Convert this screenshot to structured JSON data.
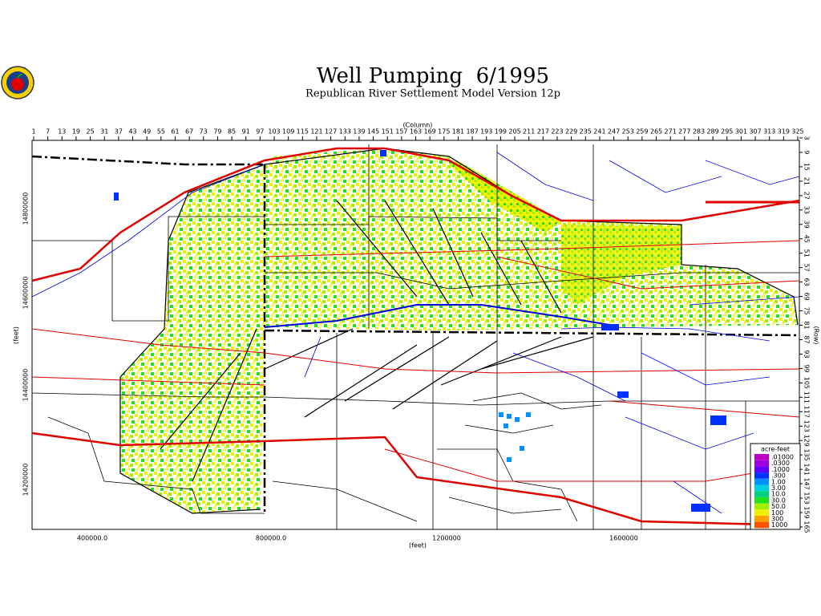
{
  "header": {
    "title": "Well Pumping  6/1995",
    "subtitle": "Republican River Settlement Model Version 12p"
  },
  "map": {
    "column_label": "(Column)",
    "row_label": "(Row)",
    "x_label": "(feet)",
    "y_label": "(feet)",
    "column_ticks": [
      1,
      7,
      13,
      19,
      25,
      31,
      37,
      43,
      49,
      55,
      61,
      67,
      73,
      79,
      85,
      91,
      97,
      103,
      109,
      115,
      121,
      127,
      133,
      139,
      145,
      151,
      157,
      163,
      169,
      175,
      181,
      187,
      193,
      199,
      205,
      211,
      217,
      223,
      229,
      235,
      241,
      247,
      253,
      259,
      265,
      271,
      277,
      283,
      289,
      295,
      301,
      307,
      313,
      319,
      325
    ],
    "row_ticks": [
      3,
      9,
      15,
      21,
      27,
      33,
      39,
      45,
      51,
      57,
      63,
      69,
      75,
      81,
      87,
      93,
      99,
      105,
      111,
      117,
      123,
      129,
      135,
      141,
      147,
      153,
      159,
      165
    ],
    "x_ticks": [
      "400000.0",
      "800000.0",
      "1200000",
      "1600000"
    ],
    "y_ticks": [
      "14800000",
      "14600000",
      "14400000",
      "14200000"
    ]
  },
  "legend": {
    "title": "acre-feet",
    "items": [
      {
        "label": ".01000",
        "color": "#c000c0"
      },
      {
        "label": ".0300",
        "color": "#a000e0"
      },
      {
        "label": ".1000",
        "color": "#6000ff"
      },
      {
        "label": ".300",
        "color": "#0030ff"
      },
      {
        "label": "1.00",
        "color": "#0090ff"
      },
      {
        "label": "3.00",
        "color": "#00d0e0"
      },
      {
        "label": "10.0",
        "color": "#00d080"
      },
      {
        "label": "30.0",
        "color": "#20e020"
      },
      {
        "label": "50.0",
        "color": "#a0f000"
      },
      {
        "label": "100",
        "color": "#f0f000"
      },
      {
        "label": "300",
        "color": "#ffa000"
      },
      {
        "label": "1000",
        "color": "#ff5000"
      }
    ]
  }
}
